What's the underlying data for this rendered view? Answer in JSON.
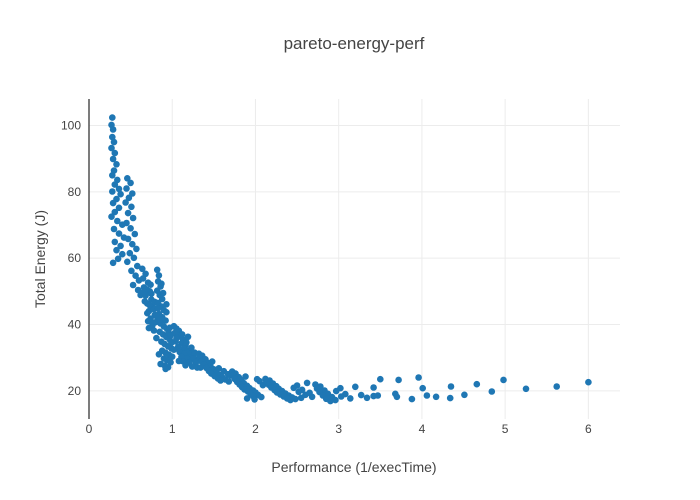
{
  "title": "pareto-energy-perf",
  "colors": {
    "background": "#ffffff",
    "marker": "#1f77b4",
    "grid": "#ececec",
    "zeroline": "#444444",
    "text": "#444444"
  },
  "chart_data": {
    "type": "scatter",
    "title": "pareto-energy-perf",
    "xlabel": "Performance (1/execTime)",
    "ylabel": "Total Energy (J)",
    "xlim": [
      0,
      6.38
    ],
    "ylim": [
      11.5,
      108
    ],
    "xticks": [
      0,
      1,
      2,
      3,
      4,
      5,
      6
    ],
    "yticks": [
      20,
      40,
      60,
      80,
      100
    ],
    "grid": true,
    "legend_position": "none",
    "marker_diameter_px": 6.6,
    "x": [
      0.28,
      0.27,
      0.29,
      0.28,
      0.3,
      0.27,
      0.31,
      0.29,
      0.33,
      0.3,
      0.28,
      0.34,
      0.31,
      0.36,
      0.28,
      0.38,
      0.33,
      0.29,
      0.36,
      0.31,
      0.27,
      0.34,
      0.4,
      0.3,
      0.36,
      0.42,
      0.31,
      0.38,
      0.33,
      0.4,
      0.35,
      0.29,
      0.46,
      0.5,
      0.45,
      0.52,
      0.48,
      0.44,
      0.51,
      0.47,
      0.53,
      0.45,
      0.5,
      0.55,
      0.47,
      0.52,
      0.57,
      0.49,
      0.54,
      0.46,
      0.58,
      0.51,
      0.56,
      0.6,
      0.53,
      0.59,
      0.62,
      0.64,
      0.68,
      0.65,
      0.71,
      0.66,
      0.73,
      0.68,
      0.75,
      0.7,
      0.77,
      0.72,
      0.79,
      0.74,
      0.8,
      0.76,
      0.7,
      0.67,
      0.73,
      0.78,
      0.75,
      0.69,
      0.72,
      0.78,
      0.66,
      0.74,
      0.79,
      0.71,
      0.77,
      0.82,
      0.84,
      0.83,
      0.86,
      0.82,
      0.85,
      0.88,
      0.83,
      0.87,
      0.9,
      0.84,
      0.88,
      0.92,
      0.86,
      0.9,
      0.94,
      0.85,
      0.89,
      0.93,
      0.97,
      0.87,
      0.91,
      0.95,
      0.99,
      0.88,
      0.92,
      0.96,
      1.0,
      0.9,
      0.94,
      0.98,
      0.86,
      0.91,
      0.95,
      0.83,
      0.89,
      0.93,
      0.97,
      0.81,
      0.85,
      0.99,
      0.96,
      0.81,
      0.93,
      0.87,
      0.98,
      0.84,
      0.92,
      1.02,
      1.05,
      1.08,
      1.03,
      1.1,
      1.06,
      1.13,
      1.04,
      1.11,
      1.16,
      1.07,
      1.14,
      1.19,
      1.09,
      1.15,
      1.22,
      1.11,
      1.18,
      1.25,
      1.13,
      1.2,
      1.28,
      1.16,
      1.24,
      1.3,
      1.05,
      1.12,
      1.21,
      1.26,
      1.08,
      1.17,
      1.23,
      1.29,
      1.02,
      1.19,
      1.27,
      1.32,
      1.36,
      1.33,
      1.4,
      1.35,
      1.43,
      1.38,
      1.46,
      1.41,
      1.5,
      1.44,
      1.53,
      1.47,
      1.57,
      1.51,
      1.6,
      1.55,
      1.64,
      1.58,
      1.68,
      1.62,
      1.67,
      1.34,
      1.48,
      1.56,
      1.7,
      1.72,
      1.76,
      1.73,
      1.8,
      1.75,
      1.83,
      1.78,
      1.86,
      1.81,
      1.9,
      1.84,
      1.93,
      1.87,
      1.97,
      1.91,
      2.0,
      1.94,
      2.03,
      1.97,
      2.07,
      1.9,
      1.99,
      2.05,
      2.09,
      1.88,
      2.02,
      2.12,
      2.17,
      2.13,
      2.21,
      2.16,
      2.25,
      2.19,
      2.28,
      2.23,
      2.32,
      2.26,
      2.36,
      2.3,
      2.4,
      2.34,
      2.44,
      2.38,
      2.48,
      2.42,
      2.52,
      2.46,
      2.56,
      2.5,
      2.6,
      2.55,
      2.65,
      2.62,
      2.68,
      2.72,
      2.78,
      2.74,
      2.83,
      2.77,
      2.87,
      2.81,
      2.92,
      2.85,
      2.96,
      2.9,
      3.02,
      2.97,
      3.08,
      3.03,
      3.14,
      3.2,
      3.27,
      3.34,
      3.42,
      3.42,
      3.47,
      3.5,
      3.72,
      3.68,
      3.7,
      3.88,
      3.96,
      4.01,
      4.06,
      4.17,
      4.35,
      4.34,
      4.51,
      4.66,
      4.84,
      4.98,
      5.25,
      5.62,
      6.0
    ],
    "y": [
      102.4,
      100.2,
      98.8,
      96.5,
      95.0,
      93.2,
      91.7,
      89.9,
      88.3,
      86.4,
      85.0,
      83.6,
      82.2,
      80.9,
      80.1,
      79.3,
      77.8,
      76.6,
      75.2,
      73.9,
      72.5,
      71.2,
      70.1,
      68.8,
      67.4,
      66.2,
      64.9,
      63.7,
      62.4,
      61.2,
      59.8,
      58.6,
      84.1,
      82.7,
      81.0,
      79.5,
      78.2,
      76.8,
      75.5,
      73.6,
      72.1,
      70.6,
      69.0,
      67.3,
      65.8,
      64.2,
      62.8,
      61.5,
      60.1,
      58.9,
      57.6,
      56.2,
      54.7,
      53.3,
      51.9,
      50.4,
      48.9,
      56.8,
      55.3,
      53.9,
      52.6,
      51.2,
      50.0,
      48.7,
      47.5,
      46.3,
      45.2,
      44.0,
      42.9,
      41.8,
      40.7,
      39.7,
      43.4,
      47.0,
      45.8,
      44.6,
      49.3,
      50.6,
      38.9,
      38.2,
      49.9,
      52.0,
      46.8,
      41.0,
      40.2,
      56.5,
      54.8,
      53.0,
      51.5,
      50.2,
      48.9,
      47.7,
      46.5,
      45.4,
      44.3,
      43.2,
      42.2,
      41.2,
      40.3,
      39.4,
      38.6,
      37.8,
      37.0,
      36.2,
      35.5,
      34.8,
      34.1,
      33.4,
      32.8,
      32.1,
      31.5,
      30.9,
      30.3,
      29.7,
      29.2,
      28.6,
      28.1,
      27.6,
      27.1,
      44.9,
      49.5,
      43.7,
      39.0,
      42.5,
      41.5,
      34.5,
      37.4,
      35.9,
      46.1,
      52.3,
      36.7,
      31.0,
      26.6,
      39.5,
      38.8,
      38.1,
      37.4,
      36.8,
      36.1,
      35.5,
      34.9,
      34.3,
      33.8,
      33.2,
      32.7,
      32.2,
      31.7,
      31.2,
      30.7,
      30.2,
      29.8,
      29.4,
      28.9,
      28.5,
      28.1,
      27.7,
      27.3,
      27.0,
      35.8,
      37.0,
      31.9,
      30.0,
      29.0,
      34.6,
      33.0,
      28.8,
      32.4,
      36.3,
      31.5,
      31.2,
      30.6,
      30.0,
      29.5,
      28.9,
      28.4,
      27.9,
      27.4,
      26.9,
      26.5,
      26.0,
      25.6,
      25.2,
      24.8,
      24.4,
      24.1,
      23.7,
      23.4,
      23.1,
      22.8,
      25.9,
      25.0,
      27.0,
      28.8,
      26.8,
      24.6,
      25.8,
      25.2,
      24.6,
      24.1,
      23.6,
      23.2,
      22.7,
      22.3,
      21.9,
      21.5,
      21.1,
      20.8,
      20.4,
      20.1,
      19.8,
      19.5,
      19.1,
      18.8,
      18.4,
      18.1,
      17.7,
      17.4,
      22.9,
      21.7,
      24.3,
      23.5,
      23.6,
      23.1,
      22.6,
      22.2,
      21.8,
      21.4,
      21.0,
      20.6,
      20.2,
      19.9,
      19.5,
      19.2,
      18.9,
      18.6,
      18.3,
      18.0,
      17.7,
      17.5,
      17.2,
      19.7,
      20.9,
      20.3,
      21.6,
      18.8,
      17.9,
      19.4,
      22.4,
      18.2,
      21.9,
      21.3,
      20.7,
      20.1,
      19.6,
      19.1,
      18.6,
      18.1,
      17.6,
      17.2,
      16.9,
      20.8,
      19.9,
      19.0,
      18.3,
      17.7,
      21.2,
      18.7,
      17.9,
      18.4,
      21.0,
      18.6,
      23.5,
      23.3,
      19.1,
      18.2,
      17.5,
      24.0,
      20.8,
      18.6,
      18.2,
      21.3,
      17.8,
      18.8,
      22.0,
      19.8,
      23.3,
      20.6,
      21.3,
      22.6
    ]
  }
}
